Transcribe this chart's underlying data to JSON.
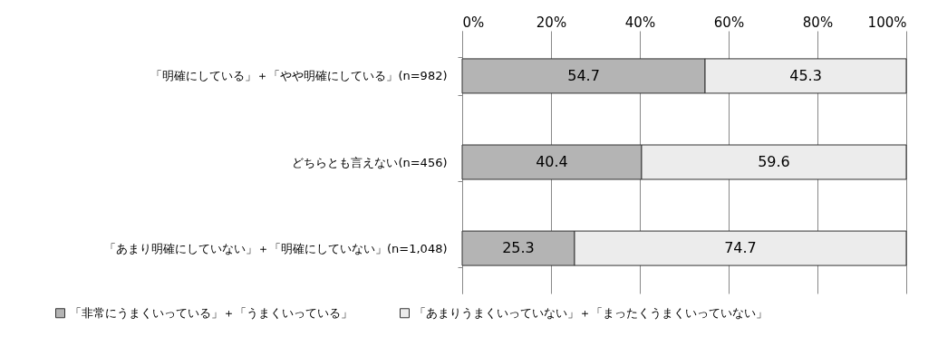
{
  "chart_data": {
    "type": "bar",
    "orientation": "horizontal",
    "stacked": true,
    "categories": [
      "「明確にしている」＋「やや明確にしている」(n=982)",
      "どちらとも言えない(n=456)",
      "「あまり明確にしていない」＋「明確にしていない」(n=1,048)"
    ],
    "series": [
      {
        "name": "「非常にうまくいっている」＋「うまくいっている」",
        "color": "#b4b4b4",
        "values": [
          54.7,
          40.4,
          25.3
        ]
      },
      {
        "name": "「あまりうまくいっていない」＋「まったくうまくいっていない」",
        "color": "#ececec",
        "values": [
          45.3,
          59.6,
          74.7
        ]
      }
    ],
    "xlim": [
      0,
      100
    ],
    "xticks": [
      {
        "value": 0,
        "label": "0%"
      },
      {
        "value": 20,
        "label": "20%"
      },
      {
        "value": 40,
        "label": "40%"
      },
      {
        "value": 60,
        "label": "60%"
      },
      {
        "value": 80,
        "label": "80%"
      },
      {
        "value": 100,
        "label": "100%"
      }
    ],
    "grid": "x",
    "legend": "bottom",
    "data_labels": true
  }
}
